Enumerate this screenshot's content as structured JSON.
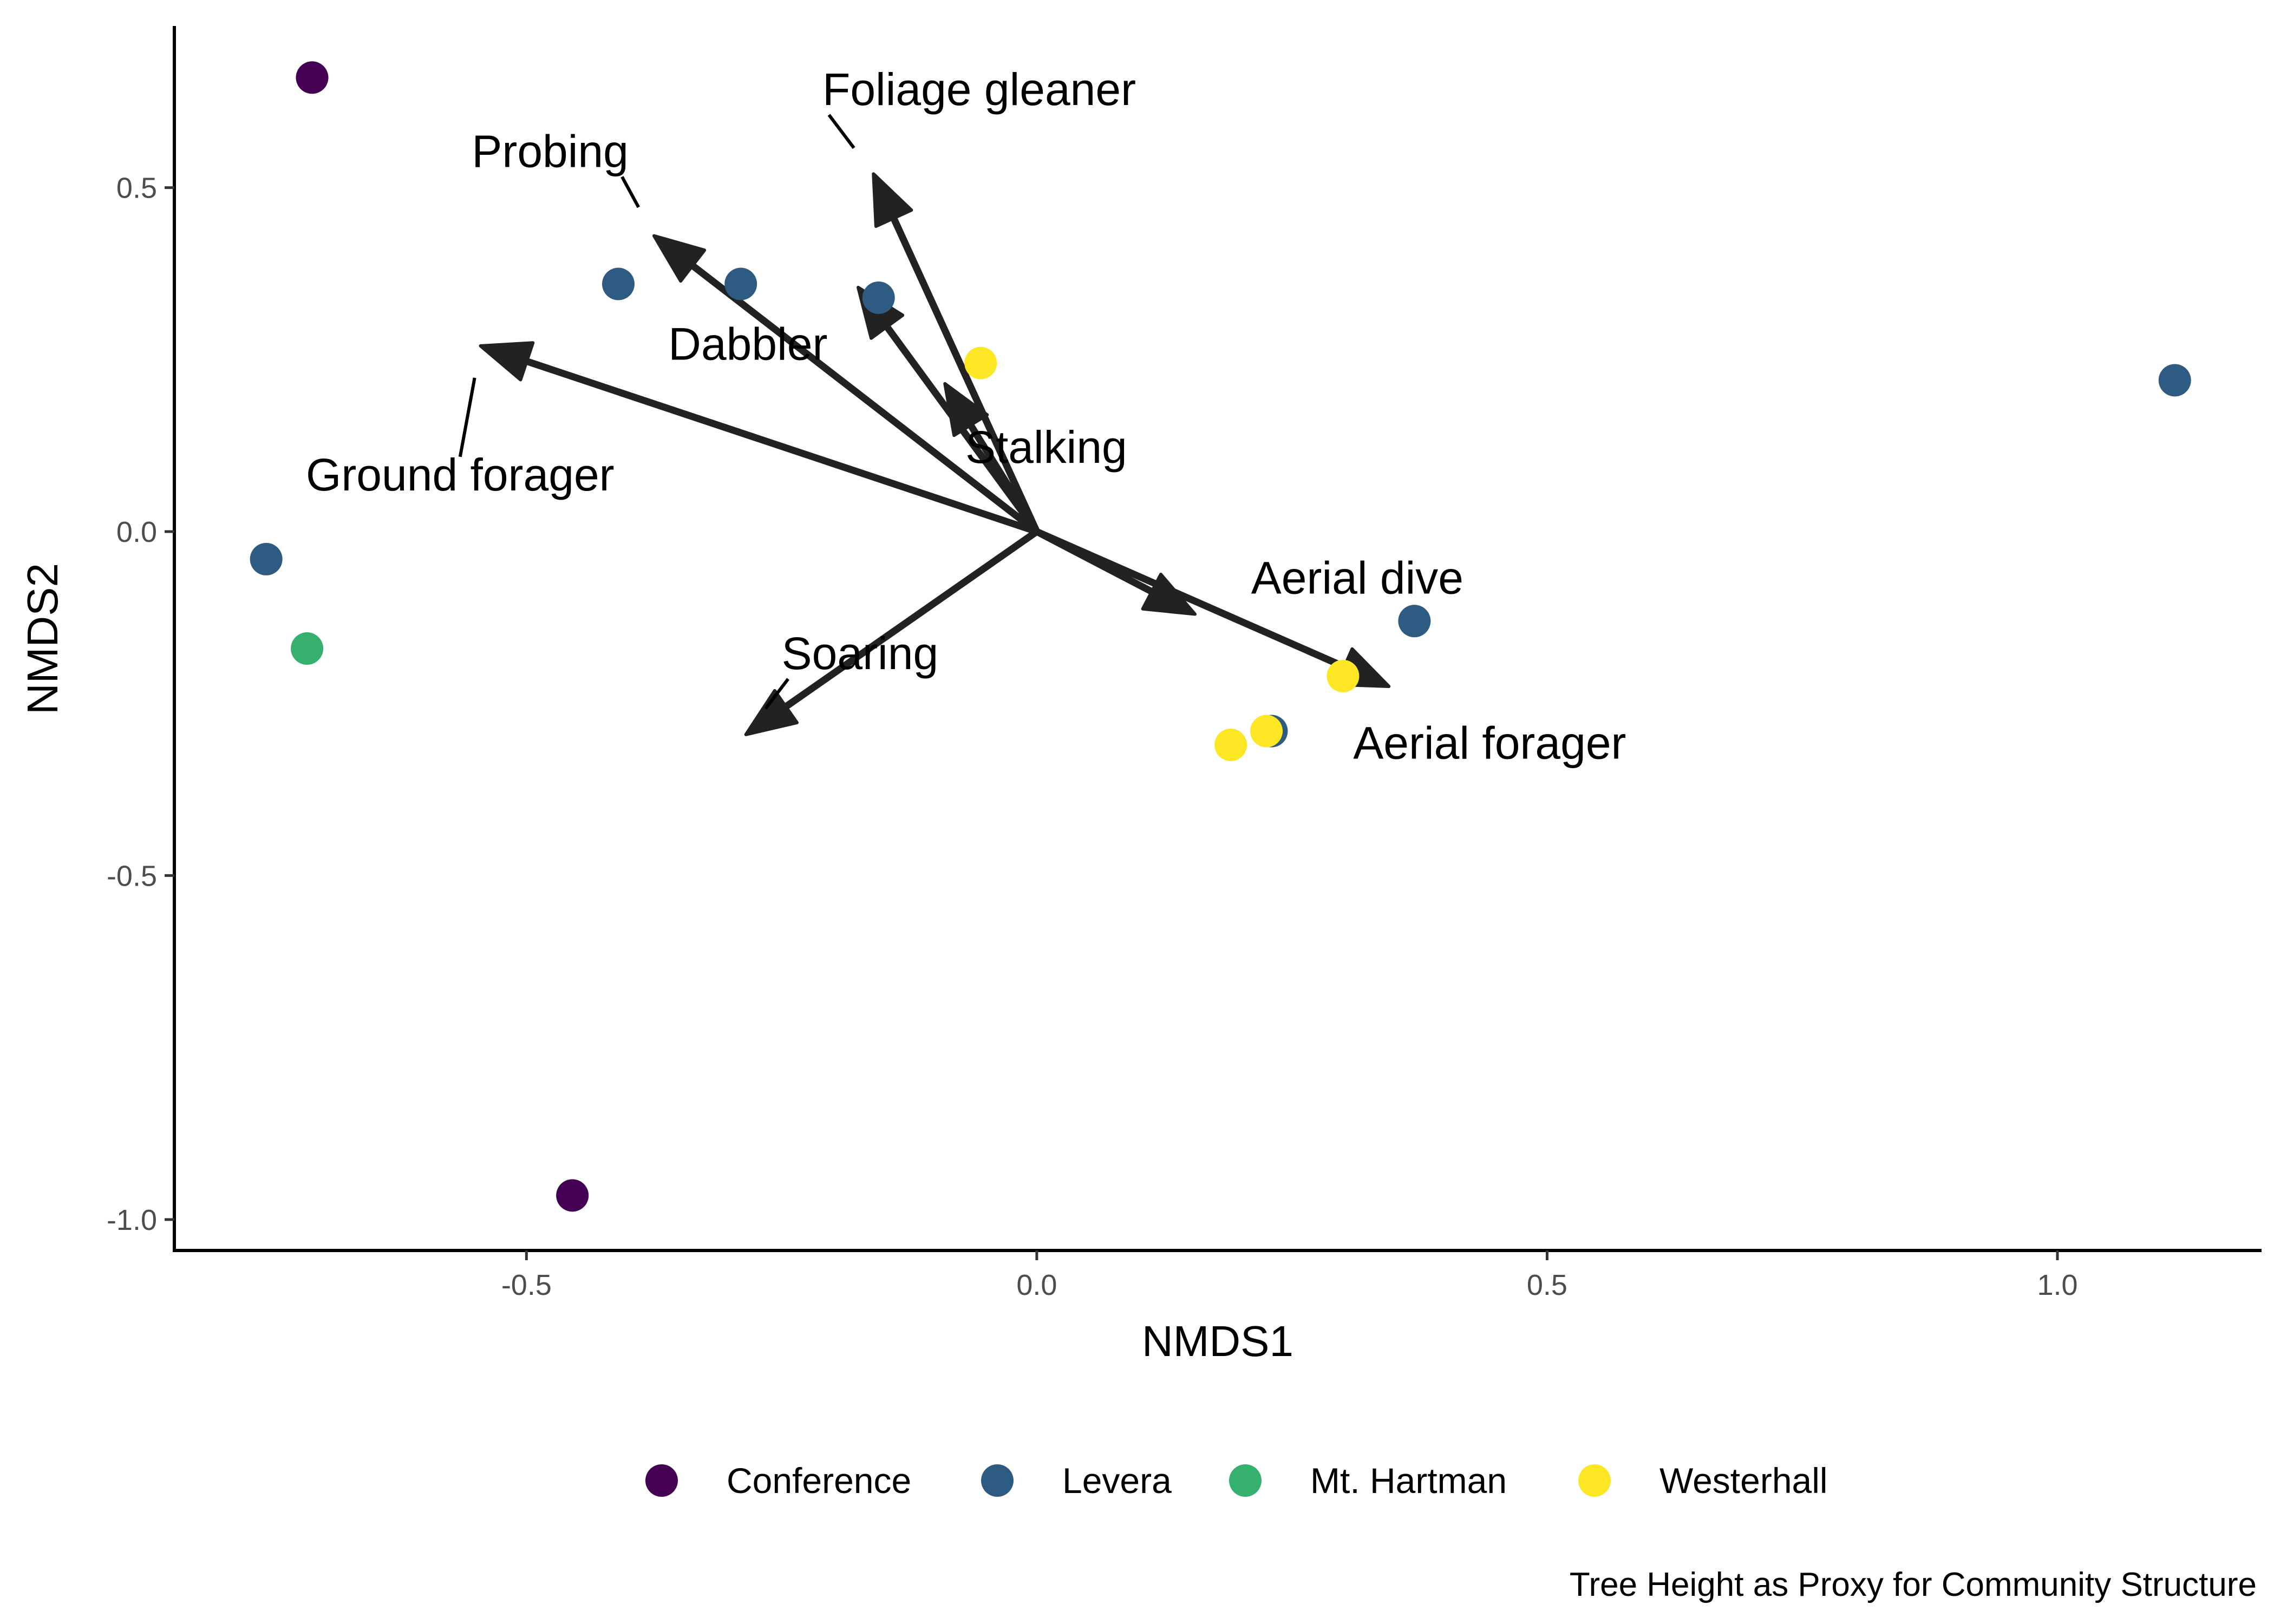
{
  "chart_data": {
    "type": "scatter",
    "title": "",
    "caption": "Tree Height as Proxy for Community Structure",
    "xlabel": "NMDS1",
    "ylabel": "NMDS2",
    "xlim": [
      -0.845,
      1.2
    ],
    "ylim": [
      -1.045,
      0.735
    ],
    "x_ticks": [
      -0.5,
      0.0,
      0.5,
      1.0
    ],
    "x_tick_labels": [
      "-0.5",
      "0.0",
      "0.5",
      "1.0"
    ],
    "y_ticks": [
      -1.0,
      -0.5,
      0.0,
      0.5
    ],
    "y_tick_labels": [
      "-1.0",
      "-0.5",
      "0.0",
      "0.5"
    ],
    "grid": false,
    "legend": {
      "position": "bottom",
      "title": ""
    },
    "series": [
      {
        "name": "Conference",
        "color": "#440154",
        "points": [
          {
            "x": -0.71,
            "y": 0.66
          },
          {
            "x": -0.455,
            "y": -0.965
          }
        ]
      },
      {
        "name": "Levera",
        "color": "#2d5b82",
        "points": [
          {
            "x": -0.41,
            "y": 0.36
          },
          {
            "x": -0.29,
            "y": 0.36
          },
          {
            "x": -0.155,
            "y": 0.34
          },
          {
            "x": -0.755,
            "y": -0.04
          },
          {
            "x": 0.37,
            "y": -0.13
          },
          {
            "x": 1.115,
            "y": 0.22
          },
          {
            "x": 0.23,
            "y": -0.29
          }
        ]
      },
      {
        "name": "Mt. Hartman",
        "color": "#35b06f",
        "points": [
          {
            "x": -0.715,
            "y": -0.17
          }
        ]
      },
      {
        "name": "Westerhall",
        "color": "#fde725",
        "points": [
          {
            "x": -0.055,
            "y": 0.245
          },
          {
            "x": 0.3,
            "y": -0.21
          },
          {
            "x": 0.225,
            "y": -0.29
          },
          {
            "x": 0.19,
            "y": -0.31
          }
        ]
      }
    ],
    "vectors": [
      {
        "name": "Foliage gleaner",
        "x": -0.16,
        "y": 0.52,
        "label_x": -0.21,
        "label_y": 0.62,
        "label_anchor": "start"
      },
      {
        "name": "Probing",
        "x": -0.375,
        "y": 0.43,
        "label_x": -0.4,
        "label_y": 0.53,
        "label_anchor": "end"
      },
      {
        "name": "Dabbler",
        "x": -0.175,
        "y": 0.355,
        "label_x": -0.205,
        "label_y": 0.25,
        "label_anchor": "end"
      },
      {
        "name": "Ground forager",
        "x": -0.545,
        "y": 0.27,
        "label_x": -0.565,
        "label_y": 0.06,
        "label_anchor": "middle"
      },
      {
        "name": "Stalking",
        "x": -0.09,
        "y": 0.215,
        "label_x": -0.07,
        "label_y": 0.1,
        "label_anchor": "start"
      },
      {
        "name": "Aerial dive",
        "x": 0.155,
        "y": -0.12,
        "label_x": 0.21,
        "label_y": -0.09,
        "label_anchor": "start"
      },
      {
        "name": "Aerial forager",
        "x": 0.345,
        "y": -0.225,
        "label_x": 0.31,
        "label_y": -0.33,
        "label_anchor": "start"
      },
      {
        "name": "Soaring",
        "x": -0.285,
        "y": -0.295,
        "label_x": -0.25,
        "label_y": -0.2,
        "label_anchor": "start"
      }
    ]
  }
}
